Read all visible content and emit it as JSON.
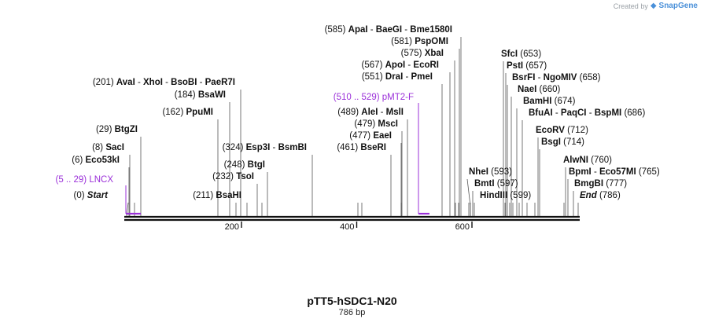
{
  "credit": {
    "prefix": "Created by",
    "brand": "SnapGene"
  },
  "plasmid": {
    "name": "pTT5-hSDC1-N20",
    "length_label": "786 bp",
    "length": 786
  },
  "axis": {
    "ticks": [
      {
        "pos": 200,
        "label": "200"
      },
      {
        "pos": 400,
        "label": "400"
      },
      {
        "pos": 600,
        "label": "600"
      }
    ]
  },
  "primers": [
    {
      "range": "(5 .. 29)",
      "name": "LNCX",
      "start": 5,
      "end": 29,
      "color": "#9b30d9"
    },
    {
      "range": "(510 .. 529)",
      "name": "pMT2-F",
      "start": 510,
      "end": 529,
      "color": "#9b30d9"
    }
  ],
  "sites_left": [
    {
      "pos": "(0)",
      "names": [
        "Start"
      ],
      "italic": true,
      "loc": 0
    },
    {
      "pos": "(6)",
      "names": [
        "Eco53kI"
      ],
      "loc": 6
    },
    {
      "pos": "(8)",
      "names": [
        "SacI"
      ],
      "loc": 8
    },
    {
      "pos": "(29)",
      "names": [
        "BtgZI"
      ],
      "loc": 29
    },
    {
      "pos": "(162)",
      "names": [
        "PpuMI"
      ],
      "loc": 162
    },
    {
      "pos": "(184)",
      "names": [
        "BsaWI"
      ],
      "loc": 184
    },
    {
      "pos": "(201)",
      "names": [
        "AvaI",
        "XhoI",
        "BsoBI",
        "PaeR7I"
      ],
      "loc": 201
    },
    {
      "pos": "(211)",
      "names": [
        "BsaHI"
      ],
      "loc": 211
    },
    {
      "pos": "(232)",
      "names": [
        "TsoI"
      ],
      "loc": 232
    },
    {
      "pos": "(248)",
      "names": [
        "BtgI"
      ],
      "loc": 248
    },
    {
      "pos": "(324)",
      "names": [
        "Esp3I",
        "BsmBI"
      ],
      "loc": 324
    },
    {
      "pos": "(461)",
      "names": [
        "BseRI"
      ],
      "loc": 461
    },
    {
      "pos": "(477)",
      "names": [
        "EaeI"
      ],
      "loc": 477
    },
    {
      "pos": "(479)",
      "names": [
        "MscI"
      ],
      "loc": 479
    },
    {
      "pos": "(489)",
      "names": [
        "AleI",
        "MslI"
      ],
      "loc": 489
    },
    {
      "pos": "(551)",
      "names": [
        "DraI",
        "PmeI"
      ],
      "loc": 551
    },
    {
      "pos": "(567)",
      "names": [
        "ApoI",
        "EcoRI"
      ],
      "loc": 567
    },
    {
      "pos": "(575)",
      "names": [
        "XbaI"
      ],
      "loc": 575
    },
    {
      "pos": "(581)",
      "names": [
        "PspOMI"
      ],
      "loc": 581
    },
    {
      "pos": "(585)",
      "names": [
        "ApaI",
        "BaeGI",
        "Bme1580I"
      ],
      "loc": 585
    }
  ],
  "sites_right": [
    {
      "pos": "(593)",
      "names": [
        "NheI"
      ],
      "loc": 593
    },
    {
      "pos": "(597)",
      "names": [
        "BmtI"
      ],
      "loc": 597
    },
    {
      "pos": "(599)",
      "names": [
        "HindIII"
      ],
      "loc": 599
    },
    {
      "pos": "(653)",
      "names": [
        "SfcI"
      ],
      "loc": 653
    },
    {
      "pos": "(657)",
      "names": [
        "PstI"
      ],
      "loc": 657
    },
    {
      "pos": "(658)",
      "names": [
        "BsrFI",
        "NgoMIV"
      ],
      "loc": 658
    },
    {
      "pos": "(660)",
      "names": [
        "NaeI"
      ],
      "loc": 660
    },
    {
      "pos": "(674)",
      "names": [
        "BamHI"
      ],
      "loc": 674
    },
    {
      "pos": "(686)",
      "names": [
        "BfuAI",
        "PaqCI",
        "BspMI"
      ],
      "loc": 686
    },
    {
      "pos": "(712)",
      "names": [
        "EcoRV"
      ],
      "loc": 712
    },
    {
      "pos": "(714)",
      "names": [
        "BsgI"
      ],
      "loc": 714
    },
    {
      "pos": "(760)",
      "names": [
        "AlwNI"
      ],
      "loc": 760
    },
    {
      "pos": "(765)",
      "names": [
        "BpmI",
        "Eco57MI"
      ],
      "loc": 765
    },
    {
      "pos": "(777)",
      "names": [
        "BmgBI"
      ],
      "loc": 777
    },
    {
      "pos": "(786)",
      "names": [
        "End"
      ],
      "italic": true,
      "loc": 786
    }
  ]
}
